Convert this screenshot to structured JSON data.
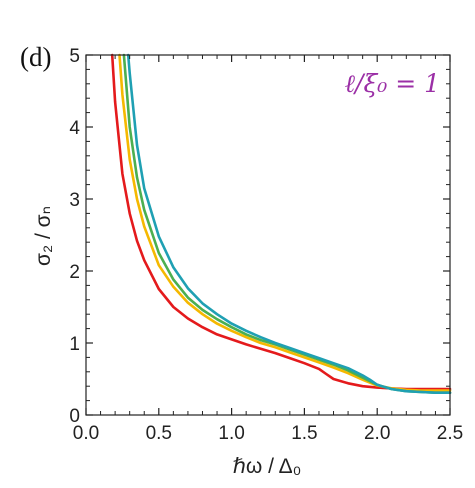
{
  "chart_data": {
    "type": "line",
    "panel_label": "(d)",
    "annotation": "ℓ/ξ₀ = 1",
    "xlabel": "ℏω / Δ₀",
    "ylabel": "σ₂ / σₙ",
    "xlim": [
      0.0,
      2.5
    ],
    "ylim": [
      0,
      5
    ],
    "x_ticks": [
      "0.0",
      "0.5",
      "1.0",
      "1.5",
      "2.0",
      "2.5"
    ],
    "y_ticks": [
      "0",
      "1",
      "2",
      "3",
      "4",
      "5"
    ],
    "colors": {
      "annotation": "#9b2fa6",
      "axis": "#222222"
    },
    "series": [
      {
        "color": "#e41a1c",
        "x": [
          0.18,
          0.2,
          0.25,
          0.3,
          0.35,
          0.4,
          0.5,
          0.6,
          0.7,
          0.8,
          0.9,
          1.0,
          1.1,
          1.2,
          1.3,
          1.4,
          1.5,
          1.6,
          1.65,
          1.7,
          1.8,
          1.9,
          2.0,
          2.1,
          2.2,
          2.3,
          2.4,
          2.5
        ],
        "y": [
          5.0,
          4.35,
          3.35,
          2.8,
          2.42,
          2.15,
          1.75,
          1.5,
          1.34,
          1.22,
          1.12,
          1.05,
          0.98,
          0.92,
          0.86,
          0.79,
          0.72,
          0.64,
          0.57,
          0.5,
          0.44,
          0.4,
          0.38,
          0.37,
          0.36,
          0.36,
          0.36,
          0.36
        ]
      },
      {
        "color": "#f5b800",
        "x": [
          0.23,
          0.25,
          0.3,
          0.35,
          0.4,
          0.5,
          0.6,
          0.7,
          0.8,
          0.9,
          1.0,
          1.1,
          1.2,
          1.3,
          1.4,
          1.5,
          1.6,
          1.7,
          1.8,
          1.9,
          2.0,
          2.1,
          2.2,
          2.3,
          2.4,
          2.5
        ],
        "y": [
          5.0,
          4.45,
          3.55,
          3.0,
          2.62,
          2.08,
          1.78,
          1.56,
          1.4,
          1.27,
          1.17,
          1.08,
          1.0,
          0.94,
          0.87,
          0.8,
          0.73,
          0.66,
          0.58,
          0.49,
          0.41,
          0.37,
          0.35,
          0.34,
          0.34,
          0.34
        ]
      },
      {
        "color": "#4caf50",
        "x": [
          0.26,
          0.3,
          0.35,
          0.4,
          0.5,
          0.6,
          0.7,
          0.8,
          0.9,
          1.0,
          1.1,
          1.2,
          1.3,
          1.4,
          1.5,
          1.6,
          1.7,
          1.8,
          1.9,
          2.0,
          2.1,
          2.2,
          2.3,
          2.4,
          2.5
        ],
        "y": [
          5.0,
          4.0,
          3.3,
          2.85,
          2.25,
          1.88,
          1.63,
          1.46,
          1.33,
          1.22,
          1.12,
          1.04,
          0.98,
          0.91,
          0.84,
          0.77,
          0.7,
          0.62,
          0.52,
          0.42,
          0.36,
          0.33,
          0.32,
          0.31,
          0.31
        ]
      },
      {
        "color": "#1fa0b3",
        "x": [
          0.29,
          0.3,
          0.35,
          0.4,
          0.5,
          0.6,
          0.7,
          0.8,
          0.9,
          1.0,
          1.1,
          1.2,
          1.3,
          1.4,
          1.5,
          1.6,
          1.7,
          1.8,
          1.9,
          1.95,
          2.0,
          2.1,
          2.2,
          2.3,
          2.4,
          2.5
        ],
        "y": [
          5.0,
          4.75,
          3.75,
          3.15,
          2.48,
          2.05,
          1.76,
          1.55,
          1.4,
          1.27,
          1.17,
          1.08,
          1.0,
          0.93,
          0.86,
          0.79,
          0.72,
          0.65,
          0.55,
          0.49,
          0.42,
          0.36,
          0.33,
          0.32,
          0.31,
          0.31
        ]
      }
    ]
  }
}
